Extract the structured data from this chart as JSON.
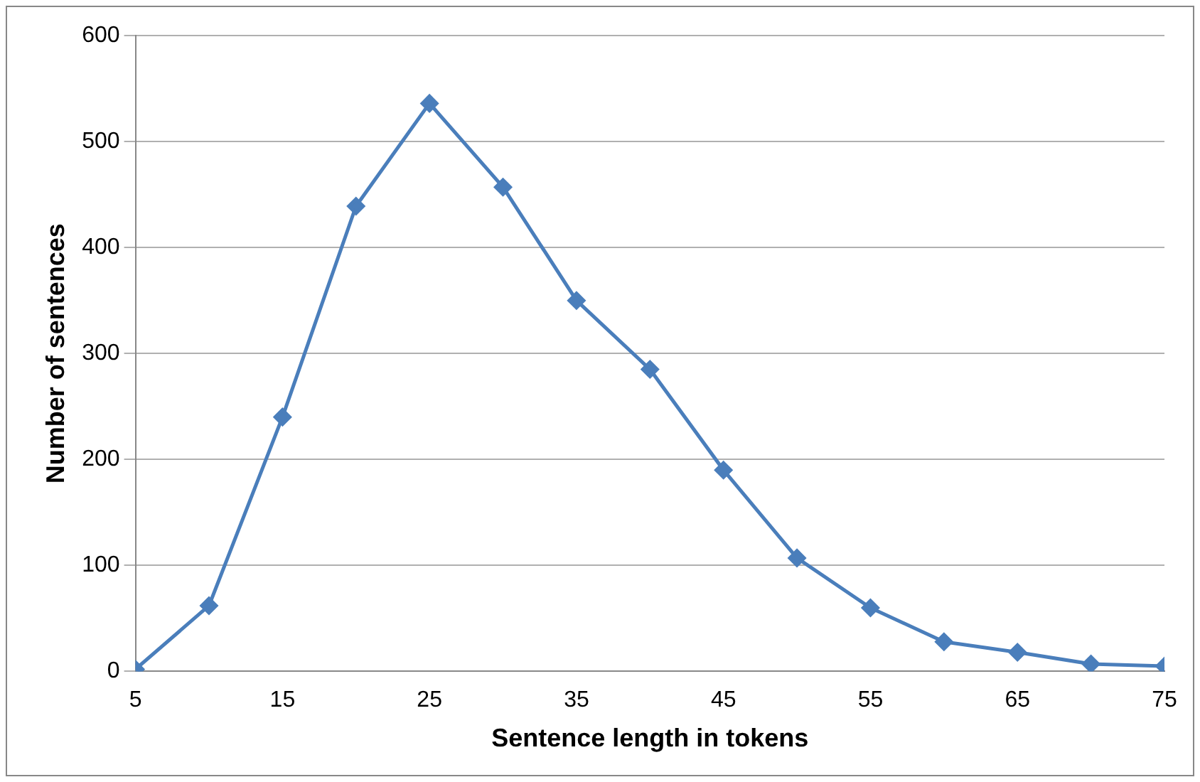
{
  "chart_data": {
    "type": "line",
    "xlabel": "Sentence length in tokens",
    "ylabel": "Number of sentences",
    "x": [
      5,
      10,
      15,
      20,
      25,
      30,
      35,
      40,
      45,
      50,
      55,
      60,
      65,
      70,
      75
    ],
    "series": [
      {
        "color": "#4a7ebb",
        "values": [
          2,
          62,
          240,
          439,
          536,
          457,
          350,
          285,
          190,
          107,
          60,
          28,
          18,
          7,
          5
        ]
      }
    ],
    "xlim": [
      5,
      75
    ],
    "xticks": [
      5,
      15,
      25,
      35,
      45,
      55,
      65,
      75
    ],
    "ylim": [
      0,
      600
    ],
    "yticks": [
      0,
      100,
      200,
      300,
      400,
      500,
      600
    ],
    "grid": "y",
    "legend": false,
    "marker": "diamond",
    "line_style": "solid"
  }
}
